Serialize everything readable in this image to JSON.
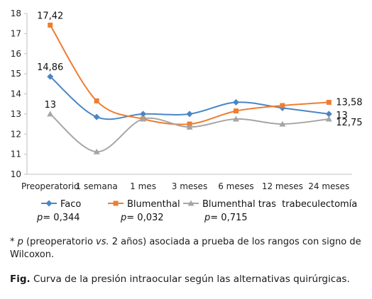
{
  "chart_data": {
    "type": "line",
    "categories": [
      "Preoperatorio",
      "1 semana",
      "1 mes",
      "3 meses",
      "6 meses",
      "12 meses",
      "24 meses"
    ],
    "ylim": [
      10,
      18
    ],
    "yticks": [
      10,
      11,
      12,
      13,
      14,
      15,
      16,
      17,
      18
    ],
    "grid": false,
    "legend_position": "bottom",
    "series": [
      {
        "name": "Faco",
        "color": "#4a86c5",
        "marker": "diamond",
        "values": [
          14.86,
          12.85,
          13.0,
          13.0,
          13.58,
          13.3,
          13.0
        ]
      },
      {
        "name": "Blumenthal",
        "color": "#ee7d31",
        "marker": "square",
        "values": [
          17.42,
          13.65,
          12.75,
          12.5,
          13.15,
          13.42,
          13.58
        ]
      },
      {
        "name": "Blumenthal tras  trabeculectomía",
        "color": "#a5a5a5",
        "marker": "triangle",
        "values": [
          13.0,
          11.12,
          12.75,
          12.35,
          12.75,
          12.5,
          12.75
        ]
      }
    ],
    "data_labels": [
      {
        "series": 0,
        "point": 0,
        "text": "14,86"
      },
      {
        "series": 1,
        "point": 0,
        "text": "17,42"
      },
      {
        "series": 2,
        "point": 0,
        "text": "13"
      },
      {
        "series": 1,
        "point": 6,
        "text": "13,58"
      },
      {
        "series": 0,
        "point": 6,
        "text": "13"
      },
      {
        "series": 2,
        "point": 6,
        "text": "12,75"
      }
    ],
    "p_values": [
      {
        "prefix": "p",
        "eq": "= ",
        "value": "0,344"
      },
      {
        "prefix": "p",
        "eq": "= ",
        "value": "0,032"
      },
      {
        "prefix": "p",
        "eq": "= ",
        "value": "0,715"
      }
    ]
  },
  "footnote": {
    "star": "* ",
    "p": "p",
    "part1": " (preoperatorio ",
    "vs": "vs.",
    "part2": " 2 años) asociada a prueba de los rangos con signo de Wilcoxon."
  },
  "caption": {
    "label": "Fig.",
    "text": " Curva de la presión intraocular según las alternativas quirúrgicas."
  }
}
